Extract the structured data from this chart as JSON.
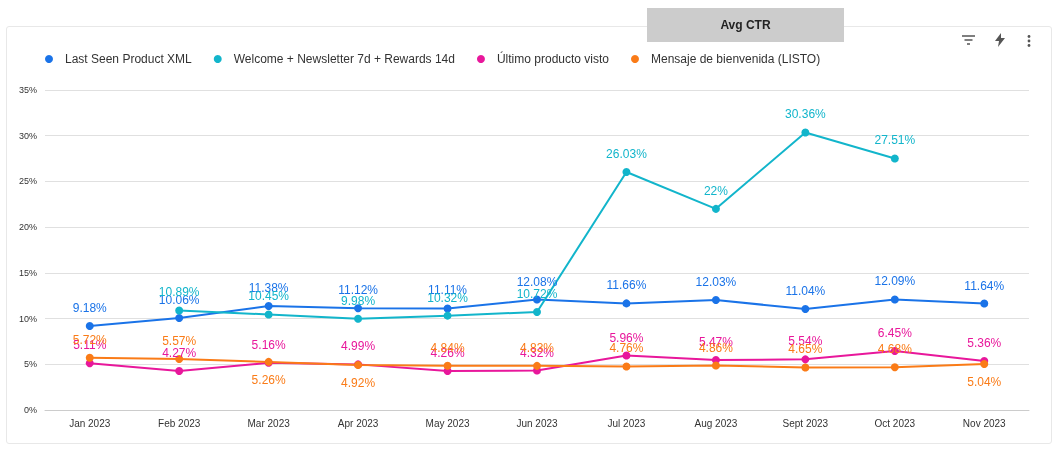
{
  "chart_data": {
    "type": "line",
    "title": "Avg CTR",
    "categories": [
      "Jan 2023",
      "Feb 2023",
      "Mar 2023",
      "Apr 2023",
      "May 2023",
      "Jun 2023",
      "Jul 2023",
      "Aug 2023",
      "Sept 2023",
      "Oct 2023",
      "Nov 2023"
    ],
    "series": [
      {
        "name": "Last Seen Product XML",
        "color": "#1a73e8",
        "values": [
          9.18,
          10.06,
          11.38,
          11.12,
          11.11,
          12.08,
          11.66,
          12.03,
          11.04,
          12.09,
          11.64
        ],
        "value_labels": [
          "9.18%",
          "10.06%",
          "11.38%",
          "11.12%",
          "11.11%",
          "12.08%",
          "11.66%",
          "12.03%",
          "11.04%",
          "12.09%",
          "11.64%"
        ]
      },
      {
        "name": "Welcome + Newsletter 7d + Rewards 14d",
        "color": "#12b5cb",
        "values": [
          null,
          10.89,
          10.45,
          9.98,
          10.32,
          10.72,
          26.03,
          22,
          30.36,
          27.51,
          null
        ],
        "value_labels": [
          null,
          "10.89%",
          "10.45%",
          "9.98%",
          "10.32%",
          "10.72%",
          "26.03%",
          "22%",
          "30.36%",
          "27.51%",
          null
        ]
      },
      {
        "name": "Último producto visto",
        "color": "#e8179b",
        "values": [
          5.11,
          4.27,
          5.16,
          4.99,
          4.26,
          4.32,
          5.96,
          5.47,
          5.54,
          6.45,
          5.36
        ],
        "value_labels": [
          "5.11%",
          "4.27%",
          "5.16%",
          "4.99%",
          "4.26%",
          "4.32%",
          "5.96%",
          "5.47%",
          "5.54%",
          "6.45%",
          "5.36%"
        ]
      },
      {
        "name": "Mensaje de bienvenida (LISTO)",
        "color": "#fa7b17",
        "values": [
          5.72,
          5.57,
          5.26,
          4.92,
          4.84,
          4.83,
          4.76,
          4.86,
          4.65,
          4.68,
          5.04
        ],
        "value_labels": [
          "5.72%",
          "5.57%",
          "5.26%",
          "4.92%",
          "4.84%",
          "4.83%",
          "4.76%",
          "4.86%",
          "4.65%",
          "4.68%",
          "5.04%"
        ]
      }
    ],
    "ylim": [
      0,
      35
    ],
    "yticks": [
      {
        "value": 0,
        "label": "0%"
      },
      {
        "value": 5,
        "label": "5%"
      },
      {
        "value": 10,
        "label": "10%"
      },
      {
        "value": 15,
        "label": "15%"
      },
      {
        "value": 20,
        "label": "20%"
      },
      {
        "value": 25,
        "label": "25%"
      },
      {
        "value": 30,
        "label": "30%"
      },
      {
        "value": 35,
        "label": "35%"
      }
    ],
    "grid": "y",
    "legend": "top left",
    "marker": "circle",
    "line_style": "solid"
  }
}
